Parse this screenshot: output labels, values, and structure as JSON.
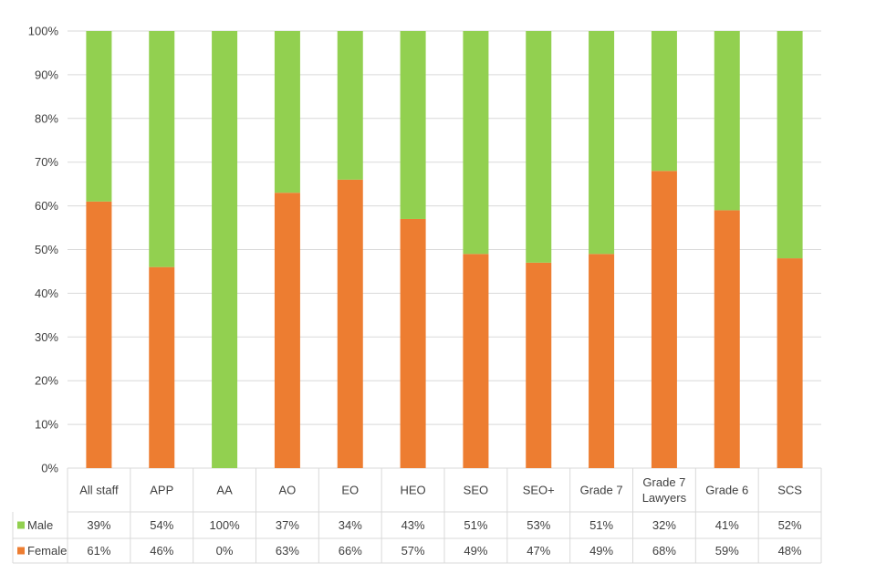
{
  "chart_data": {
    "type": "bar",
    "stacked": true,
    "percent": true,
    "categories": [
      "All staff",
      "APP",
      "AA",
      "AO",
      "EO",
      "HEO",
      "SEO",
      "SEO+",
      "Grade 7",
      "Grade 7 Lawyers",
      "Grade 6",
      "SCS"
    ],
    "category_lines": [
      [
        "All staff"
      ],
      [
        "APP"
      ],
      [
        "AA"
      ],
      [
        "AO"
      ],
      [
        "EO"
      ],
      [
        "HEO"
      ],
      [
        "SEO"
      ],
      [
        "SEO+"
      ],
      [
        "Grade 7"
      ],
      [
        "Grade 7",
        "Lawyers"
      ],
      [
        "Grade 6"
      ],
      [
        "SCS"
      ]
    ],
    "series": [
      {
        "name": "Female",
        "color": "#ED7D31",
        "values": [
          61,
          46,
          0,
          63,
          66,
          57,
          49,
          47,
          49,
          68,
          59,
          48
        ],
        "labels": [
          "61%",
          "46%",
          "0%",
          "63%",
          "66%",
          "57%",
          "49%",
          "47%",
          "49%",
          "68%",
          "59%",
          "48%"
        ]
      },
      {
        "name": "Male",
        "color": "#92D050",
        "values": [
          39,
          54,
          100,
          37,
          34,
          43,
          51,
          53,
          51,
          32,
          41,
          52
        ],
        "labels": [
          "39%",
          "54%",
          "100%",
          "37%",
          "34%",
          "43%",
          "51%",
          "53%",
          "51%",
          "32%",
          "41%",
          "52%"
        ]
      }
    ],
    "yticks": [
      "0%",
      "10%",
      "20%",
      "30%",
      "40%",
      "50%",
      "60%",
      "70%",
      "80%",
      "90%",
      "100%"
    ],
    "ylim": [
      0,
      100
    ],
    "grid": true,
    "legend": "data-table"
  }
}
